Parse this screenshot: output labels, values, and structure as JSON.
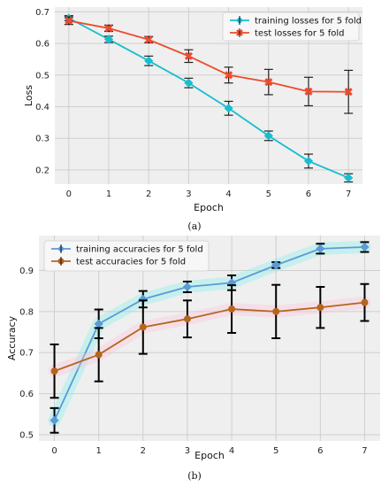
{
  "chart_data": [
    {
      "type": "line",
      "caption": "(a)",
      "xlabel": "Epoch",
      "ylabel": "Loss",
      "x": [
        0,
        1,
        2,
        3,
        4,
        5,
        6,
        7
      ],
      "xlim": [
        -0.35,
        7.35
      ],
      "ylim": [
        0.155,
        0.715
      ],
      "xticks": [
        0,
        1,
        2,
        3,
        4,
        5,
        6,
        7
      ],
      "yticks": [
        0.2,
        0.3,
        0.4,
        0.5,
        0.6,
        0.7
      ],
      "grid": true,
      "legend_position": "top-right",
      "series": [
        {
          "name": "training losses for 5 fold",
          "color": "#17becf",
          "marker": "D",
          "values": [
            0.68,
            0.613,
            0.545,
            0.475,
            0.395,
            0.308,
            0.228,
            0.175
          ],
          "errors": [
            0.008,
            0.01,
            0.015,
            0.015,
            0.022,
            0.015,
            0.022,
            0.013
          ]
        },
        {
          "name": "test losses for 5 fold",
          "color": "#ee4a2c",
          "marker": "X",
          "values": [
            0.672,
            0.648,
            0.612,
            0.56,
            0.5,
            0.478,
            0.448,
            0.447
          ],
          "errors": [
            0.012,
            0.01,
            0.01,
            0.02,
            0.025,
            0.04,
            0.045,
            0.068
          ]
        }
      ]
    },
    {
      "type": "line",
      "caption": "(b)",
      "xlabel": "Epoch",
      "ylabel": "Accuracy",
      "x": [
        0,
        1,
        2,
        3,
        4,
        5,
        6,
        7
      ],
      "xlim": [
        -0.35,
        7.35
      ],
      "ylim": [
        0.485,
        0.985
      ],
      "xticks": [
        0,
        1,
        2,
        3,
        4,
        5,
        6,
        7
      ],
      "yticks": [
        0.5,
        0.6,
        0.7,
        0.8,
        0.9
      ],
      "grid": true,
      "legend_position": "top-left",
      "series": [
        {
          "name": "training accuracies for 5 fold",
          "color": "#5b9bd5",
          "glow": "#7ff0ea",
          "marker": "D",
          "values": [
            0.535,
            0.77,
            0.83,
            0.86,
            0.87,
            0.913,
            0.953,
            0.957
          ],
          "errors": [
            0.03,
            0.035,
            0.02,
            0.013,
            0.018,
            0.007,
            0.012,
            0.012
          ]
        },
        {
          "name": "test accuracies for 5 fold",
          "color": "#b5651d",
          "glow": "#ffc4dc",
          "marker": "o",
          "values": [
            0.655,
            0.695,
            0.762,
            0.782,
            0.806,
            0.8,
            0.81,
            0.822
          ],
          "errors": [
            0.065,
            0.065,
            0.065,
            0.045,
            0.058,
            0.065,
            0.05,
            0.045
          ]
        }
      ]
    }
  ]
}
